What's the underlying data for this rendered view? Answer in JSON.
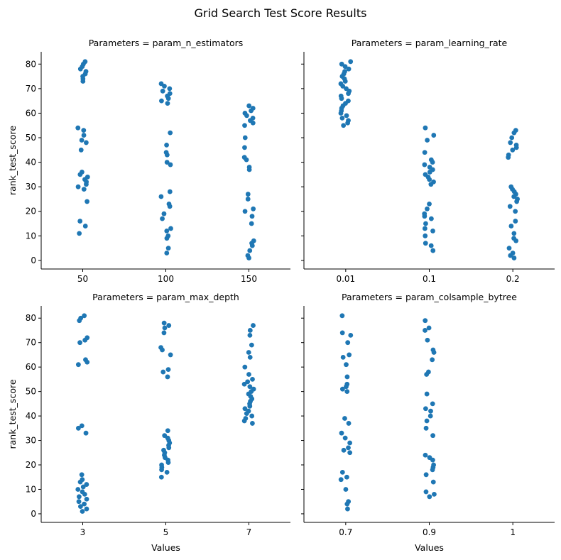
{
  "chart_data": {
    "type": "scatter",
    "title": "Grid Search Test Score Results",
    "xlabel": "Values",
    "ylabel": "rank_test_score",
    "ylim": [
      -3.5,
      85
    ],
    "yticks": [
      0,
      10,
      20,
      30,
      40,
      50,
      60,
      70,
      80
    ],
    "grid": false,
    "marker_color": "#1f77b4",
    "panels": [
      {
        "title": "Parameters = param_n_estimators",
        "categories": [
          "50",
          "100",
          "150"
        ],
        "values": [
          [
            81,
            80,
            79,
            78,
            77,
            76,
            75,
            74,
            73,
            54,
            53,
            51,
            49,
            48,
            45,
            36,
            35,
            34,
            33,
            32,
            31,
            30,
            29,
            24,
            16,
            14,
            11
          ],
          [
            72,
            71,
            70,
            69,
            68,
            67,
            66,
            65,
            64,
            52,
            47,
            44,
            43,
            40,
            39,
            28,
            26,
            23,
            22,
            19,
            17,
            13,
            12,
            10,
            9,
            5,
            3
          ],
          [
            63,
            62,
            61,
            60,
            59,
            58,
            57,
            56,
            55,
            50,
            46,
            42,
            41,
            38,
            37,
            27,
            25,
            21,
            20,
            18,
            15,
            8,
            7,
            6,
            4,
            2,
            1
          ]
        ]
      },
      {
        "title": "Parameters = param_learning_rate",
        "categories": [
          "0.01",
          "0.1",
          "0.2"
        ],
        "values": [
          [
            81,
            80,
            79,
            78,
            77,
            76,
            75,
            74,
            73,
            72,
            71,
            70,
            69,
            68,
            67,
            66,
            65,
            64,
            63,
            62,
            61,
            60,
            59,
            58,
            57,
            56,
            55
          ],
          [
            54,
            51,
            49,
            44,
            41,
            40,
            39,
            38,
            37,
            36,
            35,
            34,
            33,
            32,
            31,
            23,
            21,
            19,
            18,
            17,
            15,
            13,
            12,
            10,
            7,
            6,
            4
          ],
          [
            53,
            52,
            50,
            48,
            47,
            46,
            45,
            43,
            42,
            30,
            29,
            28,
            27,
            26,
            25,
            24,
            22,
            20,
            16,
            14,
            11,
            9,
            8,
            5,
            3,
            2,
            1
          ]
        ]
      },
      {
        "title": "Parameters = param_max_depth",
        "categories": [
          "3",
          "5",
          "7"
        ],
        "values": [
          [
            81,
            80,
            79,
            72,
            71,
            70,
            63,
            62,
            61,
            36,
            35,
            33,
            16,
            14,
            13,
            12,
            11,
            10,
            9,
            8,
            7,
            6,
            5,
            4,
            3,
            2,
            1
          ],
          [
            78,
            77,
            76,
            74,
            68,
            67,
            65,
            59,
            58,
            56,
            34,
            32,
            31,
            30,
            29,
            28,
            27,
            26,
            25,
            24,
            23,
            22,
            21,
            20,
            19,
            18,
            17,
            15
          ],
          [
            77,
            75,
            73,
            69,
            66,
            64,
            60,
            57,
            55,
            54,
            53,
            52,
            51,
            50,
            49,
            48,
            47,
            46,
            45,
            44,
            43,
            42,
            41,
            40,
            39,
            38,
            37
          ]
        ]
      },
      {
        "title": "Parameters = param_colsample_bytree",
        "categories": [
          "0.7",
          "0.9",
          "1"
        ],
        "values": [
          [
            81,
            74,
            73,
            70,
            65,
            64,
            61,
            56,
            53,
            52,
            51,
            50,
            39,
            37,
            33,
            31,
            29,
            27,
            26,
            25,
            17,
            15,
            14,
            10,
            5,
            4,
            2
          ],
          [
            79,
            76,
            75,
            71,
            67,
            66,
            63,
            58,
            57,
            49,
            45,
            43,
            42,
            40,
            38,
            35,
            32,
            24,
            23,
            22,
            20,
            19,
            18,
            16,
            13,
            9,
            8,
            7
          ],
          []
        ]
      }
    ]
  }
}
